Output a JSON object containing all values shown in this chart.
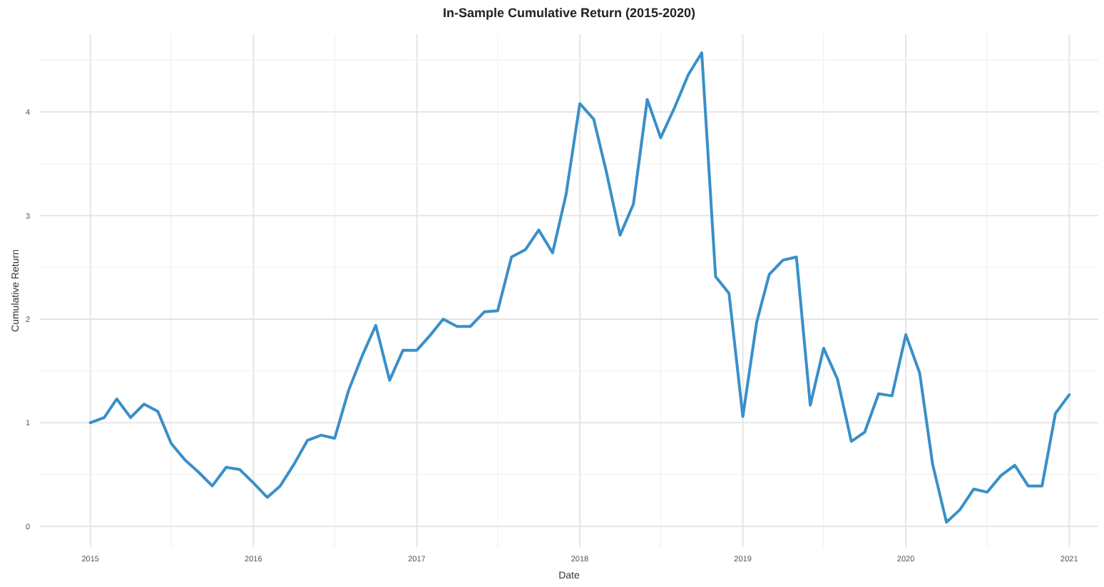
{
  "chart_data": {
    "type": "line",
    "title": "In-Sample Cumulative Return (2015-2020)",
    "xlabel": "Date",
    "ylabel": "Cumulative Return",
    "x": [
      "2015-01",
      "2015-02",
      "2015-03",
      "2015-04",
      "2015-05",
      "2015-06",
      "2015-07",
      "2015-08",
      "2015-09",
      "2015-10",
      "2015-11",
      "2015-12",
      "2016-01",
      "2016-02",
      "2016-03",
      "2016-04",
      "2016-05",
      "2016-06",
      "2016-07",
      "2016-08",
      "2016-09",
      "2016-10",
      "2016-11",
      "2016-12",
      "2017-01",
      "2017-02",
      "2017-03",
      "2017-04",
      "2017-05",
      "2017-06",
      "2017-07",
      "2017-08",
      "2017-09",
      "2017-10",
      "2017-11",
      "2017-12",
      "2018-01",
      "2018-02",
      "2018-03",
      "2018-04",
      "2018-05",
      "2018-06",
      "2018-07",
      "2018-08",
      "2018-09",
      "2018-10",
      "2018-11",
      "2018-12",
      "2019-01",
      "2019-02",
      "2019-03",
      "2019-04",
      "2019-05",
      "2019-06",
      "2019-07",
      "2019-08",
      "2019-09",
      "2019-10",
      "2019-11",
      "2019-12",
      "2020-01",
      "2020-02",
      "2020-03",
      "2020-04",
      "2020-05",
      "2020-06",
      "2020-07",
      "2020-08",
      "2020-09",
      "2020-10",
      "2020-11",
      "2020-12",
      "2021-01"
    ],
    "series": [
      {
        "color": "#3a8fc8",
        "values": [
          1.0,
          1.05,
          1.23,
          1.05,
          1.18,
          1.11,
          0.8,
          0.64,
          0.52,
          0.39,
          0.57,
          0.55,
          0.42,
          0.28,
          0.39,
          0.6,
          0.83,
          0.88,
          0.85,
          1.31,
          1.65,
          1.94,
          1.41,
          1.7,
          1.7,
          1.85,
          2.0,
          1.93,
          1.93,
          2.07,
          2.08,
          2.6,
          2.67,
          2.86,
          2.64,
          3.2,
          4.08,
          3.93,
          3.43,
          2.81,
          3.11,
          4.12,
          3.75,
          4.04,
          4.36,
          4.57,
          2.41,
          2.25,
          1.06,
          1.97,
          2.43,
          2.57,
          2.6,
          1.17,
          1.72,
          1.42,
          0.82,
          0.91,
          1.28,
          1.26,
          1.85,
          1.48,
          0.6,
          0.04,
          0.16,
          0.36,
          0.33,
          0.49,
          0.59,
          0.39,
          0.39,
          1.09,
          1.27
        ]
      }
    ],
    "xlim": [
      "2014-09-10",
      "2021-03-07"
    ],
    "xticks": [
      {
        "value": "2015",
        "label": "2015"
      },
      {
        "value": "2015-07",
        "label": null
      },
      {
        "value": "2016",
        "label": "2016"
      },
      {
        "value": "2016-07",
        "label": null
      },
      {
        "value": "2017",
        "label": "2017"
      },
      {
        "value": "2017-07",
        "label": null
      },
      {
        "value": "2018",
        "label": "2018"
      },
      {
        "value": "2018-07",
        "label": null
      },
      {
        "value": "2019",
        "label": "2019"
      },
      {
        "value": "2019-07",
        "label": null
      },
      {
        "value": "2020",
        "label": "2020"
      },
      {
        "value": "2020-07",
        "label": null
      },
      {
        "value": "2021",
        "label": "2021"
      }
    ],
    "ylim": [
      -0.2,
      4.75
    ],
    "yticks": [
      0,
      {
        "value": 0.5,
        "label": null
      },
      1,
      {
        "value": 1.5,
        "label": null
      },
      2,
      {
        "value": 2.5,
        "label": null
      },
      3,
      {
        "value": 3.5,
        "label": null
      },
      4,
      {
        "value": 4.5,
        "label": null
      }
    ],
    "grid": true,
    "line_style": "solid",
    "marker": "none"
  }
}
